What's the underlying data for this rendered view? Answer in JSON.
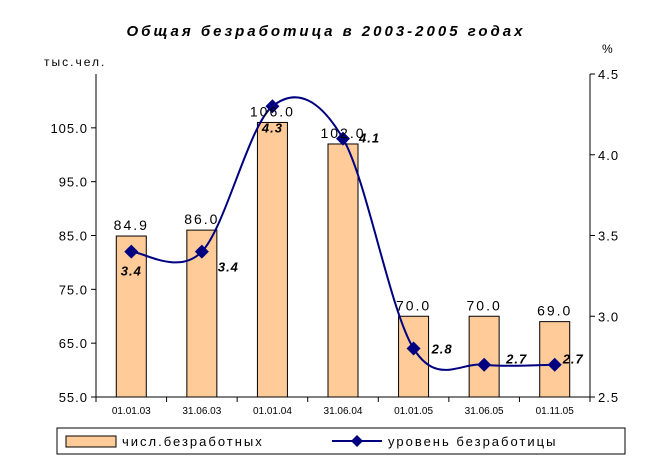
{
  "chart_data": {
    "type": "bar",
    "title": "Общая безработица в 2003-2005 годах",
    "ylabel_left": "тыс.чел.",
    "ylabel_right": "%",
    "categories": [
      "01.01.03",
      "31.06.03",
      "01.01.04",
      "31.06.04",
      "01.01.05",
      "31.06.05",
      "01.11.05"
    ],
    "left_axis": {
      "min": 55,
      "max": 115,
      "ticks": [
        "55.0",
        "65.0",
        "75.0",
        "85.0",
        "95.0",
        "105.0"
      ]
    },
    "right_axis": {
      "min": 2.5,
      "max": 4.5,
      "ticks": [
        "2.5",
        "3.0",
        "3.5",
        "4.0",
        "4.5"
      ]
    },
    "series": [
      {
        "name": "числ.безработных",
        "type": "bar",
        "axis": "left",
        "values": [
          84.9,
          86.0,
          106.0,
          102.0,
          70.0,
          70.0,
          69.0
        ],
        "labels": [
          "84.9",
          "86.0",
          "106.0",
          "102.0",
          "70.0",
          "70.0",
          "69.0"
        ],
        "color": "#FFCC99"
      },
      {
        "name": "уровень безработицы",
        "type": "line",
        "axis": "right",
        "values": [
          3.4,
          3.4,
          4.3,
          4.1,
          2.8,
          2.7,
          2.7
        ],
        "labels": [
          "3.4",
          "3.4",
          "4.3",
          "4.1",
          "2.8",
          "2.7",
          "2.7"
        ],
        "color": "#000080"
      }
    ],
    "legend_position": "bottom",
    "grid": false
  }
}
